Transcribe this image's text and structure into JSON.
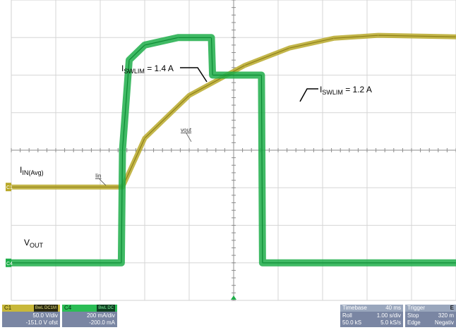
{
  "chart_data": {
    "type": "line",
    "x_unit": "ms",
    "xlim": [
      0,
      400
    ],
    "ylim_vout": [
      -151,
      249
    ],
    "ylim_in": [
      -200,
      1400
    ],
    "grid": true,
    "series": [
      {
        "name": "vout",
        "unit": "V",
        "color": "#b9a92a",
        "x": [
          0,
          100,
          120,
          160,
          210,
          250,
          290,
          330,
          400
        ],
        "y": [
          0,
          0,
          65,
          122,
          162,
          185,
          198,
          202,
          200
        ]
      },
      {
        "name": "Iin",
        "unit": "mA",
        "color": "#1fae4a",
        "x": [
          0,
          99,
          100,
          106,
          120,
          150,
          180,
          181,
          225,
          226,
          400
        ],
        "y": [
          0,
          0,
          600,
          1080,
          1160,
          1200,
          1200,
          1000,
          1000,
          0,
          0
        ]
      }
    ],
    "annotations": [
      {
        "main": "I",
        "sub": "SWLIM",
        "rest": " = 1.4 A"
      },
      {
        "main": "I",
        "sub": "SWLIM",
        "rest": " = 1.2 A"
      },
      {
        "main": "I",
        "sub": "IN(Avg)",
        "rest": ""
      },
      {
        "main": "V",
        "sub": "OUT",
        "rest": ""
      }
    ],
    "trace_tags": [
      "vout",
      "Iin"
    ],
    "markers": [
      "C4",
      "C1"
    ]
  },
  "panels": {
    "c1": {
      "name": "C1",
      "badge": "BwL DC1M",
      "l1": "50.0 V/div",
      "l2": "-151.0 V ofst"
    },
    "c4": {
      "name": "C4",
      "badge": "BwL DC",
      "l1": "200 mA/div",
      "l2": "-200.0 mA"
    },
    "timebase": {
      "title": "Timebase",
      "value": "40 ms",
      "r1a": "Roll",
      "r1b": "1.00 s/div",
      "r2a": "50.0 kS",
      "r2b": "5.0 kS/s"
    },
    "trigger": {
      "title": "Trigger",
      "icon": "E",
      "r1a": "Stop",
      "r1b": "320 m",
      "r2a": "Edge",
      "r2b": "Negativ"
    }
  }
}
